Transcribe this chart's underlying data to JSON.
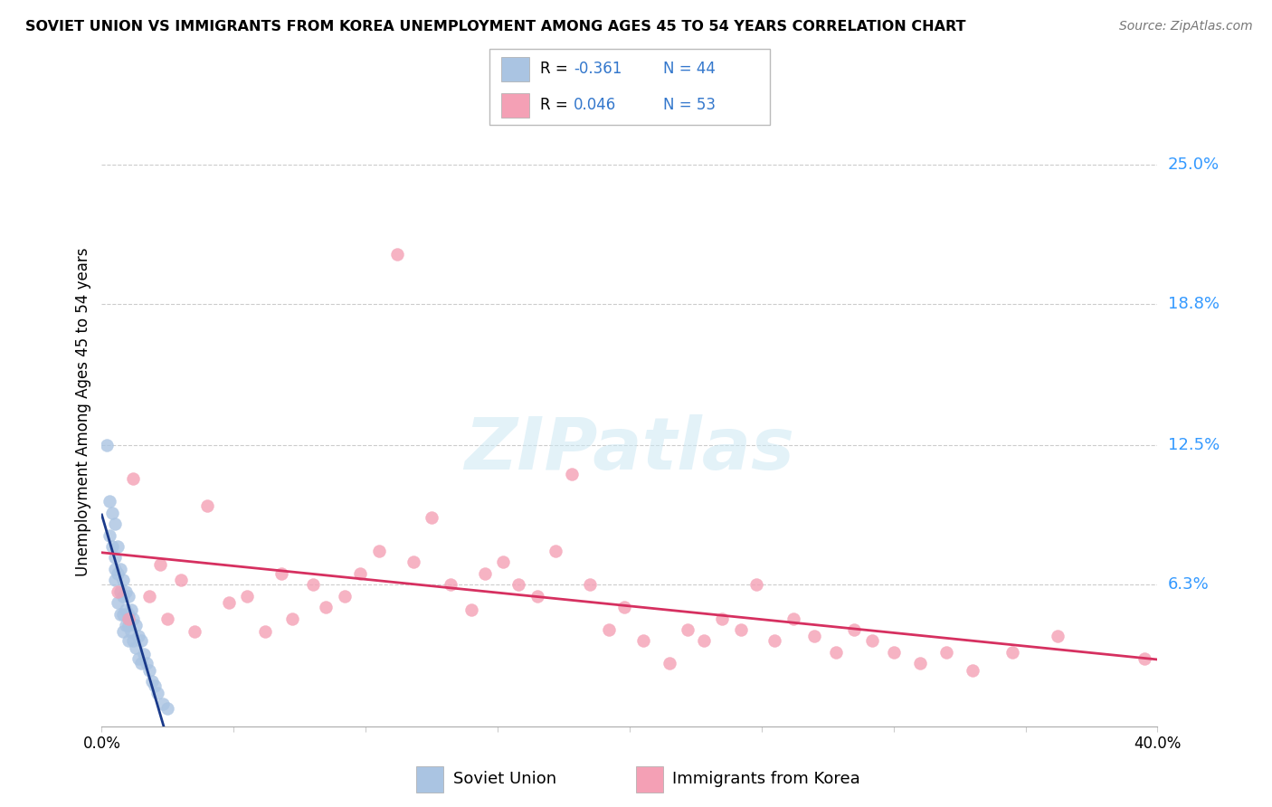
{
  "title": "SOVIET UNION VS IMMIGRANTS FROM KOREA UNEMPLOYMENT AMONG AGES 45 TO 54 YEARS CORRELATION CHART",
  "source": "Source: ZipAtlas.com",
  "ylabel": "Unemployment Among Ages 45 to 54 years",
  "ytick_labels": [
    "25.0%",
    "18.8%",
    "12.5%",
    "6.3%"
  ],
  "ytick_values": [
    0.25,
    0.188,
    0.125,
    0.063
  ],
  "xlim": [
    0.0,
    0.4
  ],
  "ylim": [
    0.0,
    0.28
  ],
  "legend_r1": "R = -0.361",
  "legend_n1": "N = 44",
  "legend_r2": "R = 0.046",
  "legend_n2": "N = 53",
  "soviet_color": "#aac4e2",
  "korea_color": "#f4a0b5",
  "soviet_line_color": "#1a3a8a",
  "korea_line_color": "#d63060",
  "soviet_scatter_x": [
    0.002,
    0.003,
    0.003,
    0.004,
    0.004,
    0.005,
    0.005,
    0.005,
    0.005,
    0.006,
    0.006,
    0.006,
    0.007,
    0.007,
    0.007,
    0.008,
    0.008,
    0.008,
    0.008,
    0.009,
    0.009,
    0.009,
    0.01,
    0.01,
    0.01,
    0.01,
    0.011,
    0.011,
    0.012,
    0.012,
    0.013,
    0.013,
    0.014,
    0.014,
    0.015,
    0.015,
    0.016,
    0.017,
    0.018,
    0.019,
    0.02,
    0.021,
    0.023,
    0.025
  ],
  "soviet_scatter_y": [
    0.125,
    0.1,
    0.085,
    0.095,
    0.08,
    0.09,
    0.075,
    0.07,
    0.065,
    0.08,
    0.068,
    0.055,
    0.07,
    0.06,
    0.05,
    0.065,
    0.058,
    0.05,
    0.042,
    0.06,
    0.052,
    0.045,
    0.058,
    0.05,
    0.045,
    0.038,
    0.052,
    0.042,
    0.048,
    0.038,
    0.045,
    0.035,
    0.04,
    0.03,
    0.038,
    0.028,
    0.032,
    0.028,
    0.025,
    0.02,
    0.018,
    0.015,
    0.01,
    0.008
  ],
  "korea_scatter_x": [
    0.006,
    0.01,
    0.012,
    0.018,
    0.022,
    0.025,
    0.03,
    0.035,
    0.04,
    0.048,
    0.055,
    0.062,
    0.068,
    0.072,
    0.08,
    0.085,
    0.092,
    0.098,
    0.105,
    0.112,
    0.118,
    0.125,
    0.132,
    0.14,
    0.145,
    0.152,
    0.158,
    0.165,
    0.172,
    0.178,
    0.185,
    0.192,
    0.198,
    0.205,
    0.215,
    0.222,
    0.228,
    0.235,
    0.242,
    0.248,
    0.255,
    0.262,
    0.27,
    0.278,
    0.285,
    0.292,
    0.3,
    0.31,
    0.32,
    0.33,
    0.345,
    0.362,
    0.395
  ],
  "korea_scatter_y": [
    0.06,
    0.048,
    0.11,
    0.058,
    0.072,
    0.048,
    0.065,
    0.042,
    0.098,
    0.055,
    0.058,
    0.042,
    0.068,
    0.048,
    0.063,
    0.053,
    0.058,
    0.068,
    0.078,
    0.21,
    0.073,
    0.093,
    0.063,
    0.052,
    0.068,
    0.073,
    0.063,
    0.058,
    0.078,
    0.112,
    0.063,
    0.043,
    0.053,
    0.038,
    0.028,
    0.043,
    0.038,
    0.048,
    0.043,
    0.063,
    0.038,
    0.048,
    0.04,
    0.033,
    0.043,
    0.038,
    0.033,
    0.028,
    0.033,
    0.025,
    0.033,
    0.04,
    0.03
  ]
}
